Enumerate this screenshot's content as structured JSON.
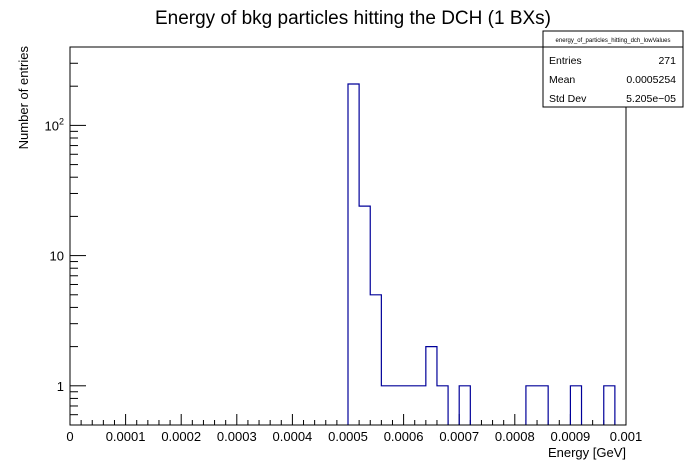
{
  "chart_data": {
    "type": "histogram",
    "title": "Energy of bkg particles hitting the DCH (1 BXs)",
    "xlabel": "Energy [GeV]",
    "ylabel": "Number of entries",
    "xlim": [
      0,
      0.001
    ],
    "ylim_log": [
      0.5,
      400
    ],
    "y_scale": "log",
    "bin_width": 2e-05,
    "line_color": "#000099",
    "x_ticks": [
      0,
      0.0001,
      0.0002,
      0.0003,
      0.0004,
      0.0005,
      0.0006,
      0.0007,
      0.0008,
      0.0009,
      0.001
    ],
    "x_tick_labels": [
      "0",
      "0.0001",
      "0.0002",
      "0.0003",
      "0.0004",
      "0.0005",
      "0.0006",
      "0.0007",
      "0.0008",
      "0.0009",
      "0.001"
    ],
    "y_ticks": [
      1,
      10,
      100
    ],
    "y_tick_labels": [
      "1",
      "10",
      "10^2"
    ],
    "bins": [
      {
        "x": 0.0005,
        "count": 208
      },
      {
        "x": 0.00052,
        "count": 24
      },
      {
        "x": 0.00054,
        "count": 5
      },
      {
        "x": 0.00056,
        "count": 1
      },
      {
        "x": 0.00058,
        "count": 1
      },
      {
        "x": 0.0006,
        "count": 1
      },
      {
        "x": 0.00062,
        "count": 1
      },
      {
        "x": 0.00064,
        "count": 2
      },
      {
        "x": 0.00066,
        "count": 1
      },
      {
        "x": 0.0007,
        "count": 1
      },
      {
        "x": 0.00082,
        "count": 1
      },
      {
        "x": 0.00084,
        "count": 1
      },
      {
        "x": 0.0009,
        "count": 1
      },
      {
        "x": 0.00096,
        "count": 1
      }
    ]
  },
  "stats_box": {
    "name": "energy_of_particles_hitting_dch_lowValues",
    "rows": [
      {
        "label": "Entries",
        "value": "271"
      },
      {
        "label": "Mean",
        "value": "0.0005254"
      },
      {
        "label": "Std Dev",
        "value": "5.205e−05"
      }
    ]
  }
}
